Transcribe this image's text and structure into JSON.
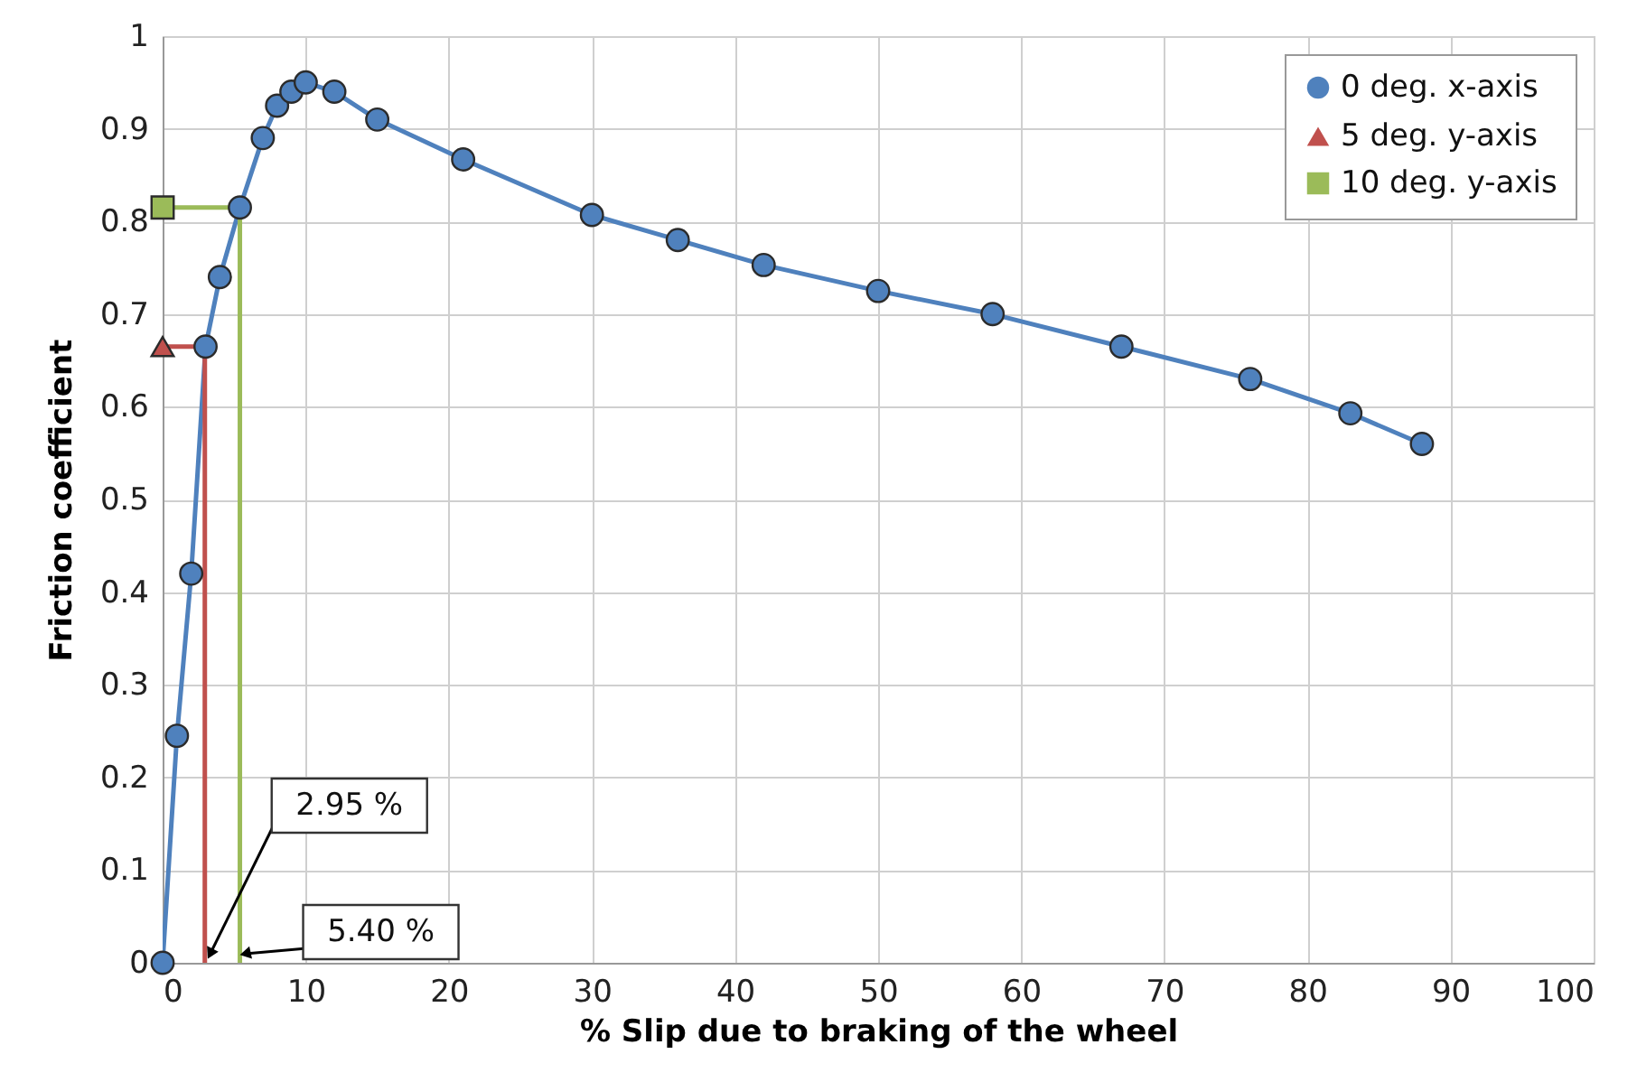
{
  "chart_data": {
    "type": "line",
    "xlabel": "% Slip due to braking of the wheel",
    "ylabel": "Friction coefficient",
    "xlim": [
      0,
      100
    ],
    "xticks": [
      0,
      10,
      20,
      30,
      40,
      50,
      60,
      70,
      80,
      90,
      100
    ],
    "ylim": [
      0,
      1
    ],
    "yticks": [
      0,
      0.1,
      0.2,
      0.3,
      0.4,
      0.5,
      0.6,
      0.7,
      0.8,
      0.9,
      1
    ],
    "grid": true,
    "legend": "top right",
    "line_style": "solid",
    "series": [
      {
        "type": "line",
        "name": "0 deg. x-axis",
        "color": "#4f81bd",
        "marker": "circle",
        "x": [
          0,
          1,
          2,
          3,
          4,
          5.4,
          7,
          8,
          9,
          10,
          12,
          15,
          21,
          30,
          36,
          42,
          50,
          58,
          67,
          76,
          83,
          88
        ],
        "values": [
          0,
          0.245,
          0.42,
          0.665,
          0.74,
          0.815,
          0.89,
          0.925,
          0.94,
          0.95,
          0.94,
          0.91,
          0.867,
          0.807,
          0.78,
          0.753,
          0.725,
          0.7,
          0.665,
          0.63,
          0.593,
          0.56
        ]
      },
      {
        "type": "line",
        "color": "#c0504d",
        "marker": "none",
        "x": [
          0,
          2.95,
          2.95
        ],
        "values": [
          0.665,
          0.665,
          0
        ]
      },
      {
        "type": "line",
        "color": "#9bbb59",
        "marker": "none",
        "x": [
          0,
          5.4,
          5.4
        ],
        "values": [
          0.815,
          0.815,
          0
        ]
      },
      {
        "type": "scatter",
        "name": "5 deg. y-axis",
        "color": "#c0504d",
        "marker": "triangle",
        "x": [
          0
        ],
        "values": [
          0.665
        ]
      },
      {
        "type": "scatter",
        "name": "10 deg. y-axis",
        "color": "#9bbb59",
        "marker": "square",
        "x": [
          0
        ],
        "values": [
          0.815
        ]
      }
    ],
    "annotations": [
      {
        "text": "2.95 %",
        "x": 2.95,
        "y": 0
      },
      {
        "text": "5.40 %",
        "x": 5.4,
        "y": 0
      }
    ]
  }
}
